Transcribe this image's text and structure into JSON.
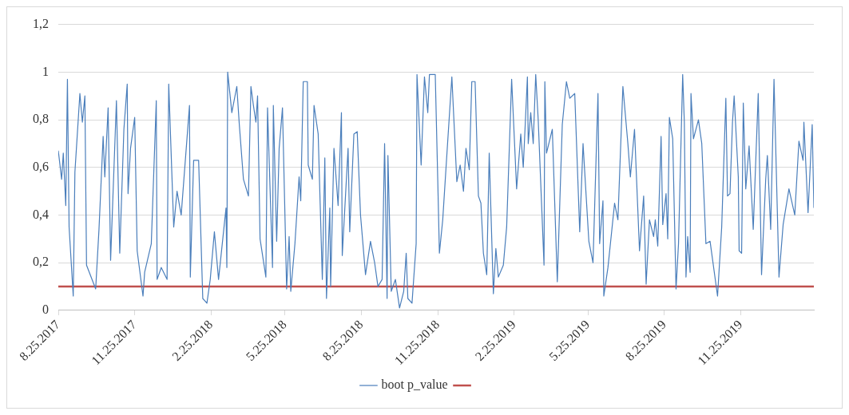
{
  "chart_data": {
    "type": "line",
    "grid": "y",
    "legend": "bottom",
    "marker": "none",
    "line_style": "solid",
    "xlim": [
      "2017-08-25",
      "2020-02-21"
    ],
    "xticks": [
      {
        "value": "2017-08-25",
        "label": "8.25.2017"
      },
      {
        "value": "2017-11-25",
        "label": "11.25.2017"
      },
      {
        "value": "2018-02-25",
        "label": "2.25.2018"
      },
      {
        "value": "2018-05-25",
        "label": "5.25.2018"
      },
      {
        "value": "2018-08-25",
        "label": "8.25.2018"
      },
      {
        "value": "2018-11-25",
        "label": "11.25.2018"
      },
      {
        "value": "2019-02-25",
        "label": "2.25.2019"
      },
      {
        "value": "2019-05-25",
        "label": "5.25.2019"
      },
      {
        "value": "2019-08-25",
        "label": "8.25.2019"
      },
      {
        "value": "2019-11-25",
        "label": "11.25.2019"
      }
    ],
    "ylim": [
      0,
      1.2
    ],
    "yticks": [
      0,
      {
        "value": 0.2,
        "label": "0,2"
      },
      {
        "value": 0.4,
        "label": "0,4"
      },
      {
        "value": 0.6,
        "label": "0,6"
      },
      {
        "value": 0.8,
        "label": "0,8"
      },
      1,
      {
        "value": 1.2,
        "label": "1,2"
      }
    ],
    "series": [
      {
        "name": "boot p_value",
        "color": "#4a7ebb",
        "x": [
          "2017-08-25",
          "2017-08-29",
          "2017-08-31",
          "2017-09-03",
          "2017-09-05",
          "2017-09-07",
          "2017-09-12",
          "2017-09-14",
          "2017-09-20",
          "2017-09-23",
          "2017-09-26",
          "2017-09-28",
          "2017-10-09",
          "2017-10-13",
          "2017-10-18",
          "2017-10-20",
          "2017-10-24",
          "2017-10-27",
          "2017-11-03",
          "2017-11-07",
          "2017-11-12",
          "2017-11-16",
          "2017-11-17",
          "2017-11-20",
          "2017-11-25",
          "2017-11-28",
          "2017-12-05",
          "2017-12-07",
          "2017-12-15",
          "2017-12-21",
          "2017-12-22",
          "2017-12-27",
          "2018-01-03",
          "2018-01-05",
          "2018-01-11",
          "2018-01-15",
          "2018-01-20",
          "2018-01-30",
          "2018-01-31",
          "2018-02-04",
          "2018-02-10",
          "2018-02-15",
          "2018-02-20",
          "2018-02-24",
          "2018-03-01",
          "2018-03-06",
          "2018-03-15",
          "2018-03-16",
          "2018-03-17",
          "2018-03-22",
          "2018-03-28",
          "2018-03-31",
          "2018-04-05",
          "2018-04-11",
          "2018-04-14",
          "2018-04-17",
          "2018-04-20",
          "2018-04-22",
          "2018-04-25",
          "2018-05-02",
          "2018-05-04",
          "2018-05-10",
          "2018-05-11",
          "2018-05-15",
          "2018-05-18",
          "2018-05-22",
          "2018-05-27",
          "2018-05-30",
          "2018-06-01",
          "2018-06-06",
          "2018-06-11",
          "2018-06-13",
          "2018-06-16",
          "2018-06-21",
          "2018-06-22",
          "2018-06-27",
          "2018-06-29",
          "2018-07-04",
          "2018-07-09",
          "2018-07-12",
          "2018-07-14",
          "2018-07-18",
          "2018-07-19",
          "2018-07-23",
          "2018-07-28",
          "2018-08-01",
          "2018-08-02",
          "2018-08-09",
          "2018-08-11",
          "2018-08-16",
          "2018-08-20",
          "2018-08-24",
          "2018-08-30",
          "2018-09-05",
          "2018-09-10",
          "2018-09-14",
          "2018-09-19",
          "2018-09-22",
          "2018-09-25",
          "2018-09-26",
          "2018-09-30",
          "2018-10-05",
          "2018-10-10",
          "2018-10-15",
          "2018-10-18",
          "2018-10-20",
          "2018-10-25",
          "2018-10-30",
          "2018-10-31",
          "2018-11-05",
          "2018-11-09",
          "2018-11-13",
          "2018-11-15",
          "2018-11-22",
          "2018-11-25",
          "2018-11-27",
          "2018-12-01",
          "2018-12-05",
          "2018-12-12",
          "2018-12-18",
          "2018-12-22",
          "2018-12-26",
          "2018-12-29",
          "2019-01-02",
          "2019-01-05",
          "2019-01-09",
          "2019-01-13",
          "2019-01-16",
          "2019-01-19",
          "2019-01-23",
          "2019-01-26",
          "2019-01-31",
          "2019-02-03",
          "2019-02-06",
          "2019-02-12",
          "2019-02-16",
          "2019-02-22",
          "2019-02-28",
          "2019-03-05",
          "2019-03-08",
          "2019-03-13",
          "2019-03-14",
          "2019-03-17",
          "2019-03-20",
          "2019-03-23",
          "2019-03-26",
          "2019-04-02",
          "2019-04-03",
          "2019-04-05",
          "2019-04-12",
          "2019-04-18",
          "2019-04-24",
          "2019-04-29",
          "2019-05-03",
          "2019-05-09",
          "2019-05-15",
          "2019-05-19",
          "2019-05-26",
          "2019-05-31",
          "2019-06-06",
          "2019-06-08",
          "2019-06-12",
          "2019-06-13",
          "2019-06-18",
          "2019-06-26",
          "2019-06-30",
          "2019-07-06",
          "2019-07-11",
          "2019-07-12",
          "2019-07-15",
          "2019-07-20",
          "2019-07-26",
          "2019-07-31",
          "2019-08-03",
          "2019-08-07",
          "2019-08-12",
          "2019-08-14",
          "2019-08-17",
          "2019-08-21",
          "2019-08-23",
          "2019-08-27",
          "2019-08-29",
          "2019-08-31",
          "2019-09-04",
          "2019-09-08",
          "2019-09-11",
          "2019-09-16",
          "2019-09-18",
          "2019-09-20",
          "2019-09-22",
          "2019-09-25",
          "2019-09-26",
          "2019-09-29",
          "2019-10-05",
          "2019-10-09",
          "2019-10-14",
          "2019-10-19",
          "2019-10-28",
          "2019-11-02",
          "2019-11-07",
          "2019-11-09",
          "2019-11-12",
          "2019-11-15",
          "2019-11-17",
          "2019-11-22",
          "2019-11-23",
          "2019-11-26",
          "2019-11-28",
          "2019-12-01",
          "2019-12-05",
          "2019-12-10",
          "2019-12-16",
          "2019-12-20",
          "2019-12-25",
          "2019-12-27",
          "2019-12-31",
          "2020-01-04",
          "2020-01-10",
          "2020-01-15",
          "2020-01-22",
          "2020-01-29",
          "2020-02-03",
          "2020-02-08",
          "2020-02-09",
          "2020-02-14",
          "2020-02-19",
          "2020-02-21"
        ],
        "values": [
          0.67,
          0.55,
          0.66,
          0.44,
          0.97,
          0.35,
          0.06,
          0.58,
          0.91,
          0.79,
          0.9,
          0.19,
          0.09,
          0.34,
          0.73,
          0.56,
          0.85,
          0.21,
          0.88,
          0.24,
          0.76,
          0.95,
          0.49,
          0.68,
          0.81,
          0.25,
          0.06,
          0.16,
          0.28,
          0.88,
          0.13,
          0.18,
          0.13,
          0.95,
          0.35,
          0.5,
          0.4,
          0.86,
          0.14,
          0.63,
          0.63,
          0.05,
          0.03,
          0.13,
          0.33,
          0.13,
          0.43,
          0.18,
          1.0,
          0.83,
          0.94,
          0.78,
          0.55,
          0.48,
          0.94,
          0.86,
          0.79,
          0.9,
          0.3,
          0.14,
          0.85,
          0.18,
          0.86,
          0.29,
          0.68,
          0.85,
          0.09,
          0.31,
          0.08,
          0.28,
          0.56,
          0.46,
          0.96,
          0.96,
          0.61,
          0.55,
          0.86,
          0.74,
          0.13,
          0.64,
          0.05,
          0.43,
          0.1,
          0.68,
          0.44,
          0.83,
          0.23,
          0.68,
          0.33,
          0.74,
          0.75,
          0.4,
          0.15,
          0.29,
          0.2,
          0.1,
          0.13,
          0.7,
          0.05,
          0.65,
          0.08,
          0.13,
          0.01,
          0.08,
          0.24,
          0.05,
          0.03,
          0.28,
          0.99,
          0.61,
          0.98,
          0.83,
          0.99,
          0.99,
          0.55,
          0.24,
          0.38,
          0.6,
          0.98,
          0.54,
          0.61,
          0.5,
          0.68,
          0.59,
          0.96,
          0.96,
          0.48,
          0.45,
          0.24,
          0.15,
          0.66,
          0.07,
          0.26,
          0.14,
          0.19,
          0.35,
          0.97,
          0.51,
          0.74,
          0.6,
          0.98,
          0.7,
          0.83,
          0.7,
          0.99,
          0.8,
          0.19,
          0.96,
          0.66,
          0.76,
          0.12,
          0.78,
          0.96,
          0.89,
          0.91,
          0.33,
          0.7,
          0.29,
          0.2,
          0.91,
          0.28,
          0.46,
          0.06,
          0.18,
          0.45,
          0.38,
          0.94,
          0.74,
          0.7,
          0.56,
          0.76,
          0.25,
          0.48,
          0.11,
          0.38,
          0.31,
          0.38,
          0.27,
          0.73,
          0.36,
          0.49,
          0.3,
          0.81,
          0.72,
          0.09,
          0.28,
          0.99,
          0.79,
          0.14,
          0.31,
          0.16,
          0.91,
          0.72,
          0.8,
          0.7,
          0.28,
          0.29,
          0.06,
          0.35,
          0.89,
          0.48,
          0.49,
          0.79,
          0.9,
          0.56,
          0.25,
          0.24,
          0.87,
          0.51,
          0.69,
          0.34,
          0.91,
          0.15,
          0.55,
          0.65,
          0.34,
          0.97,
          0.14,
          0.36,
          0.51,
          0.4,
          0.71,
          0.63,
          0.79,
          0.41,
          0.78,
          0.43
        ]
      },
      {
        "color": "#c0504d",
        "x": [
          "2017-08-25",
          "2020-02-21"
        ],
        "values": [
          0.1,
          0.1
        ]
      }
    ]
  }
}
